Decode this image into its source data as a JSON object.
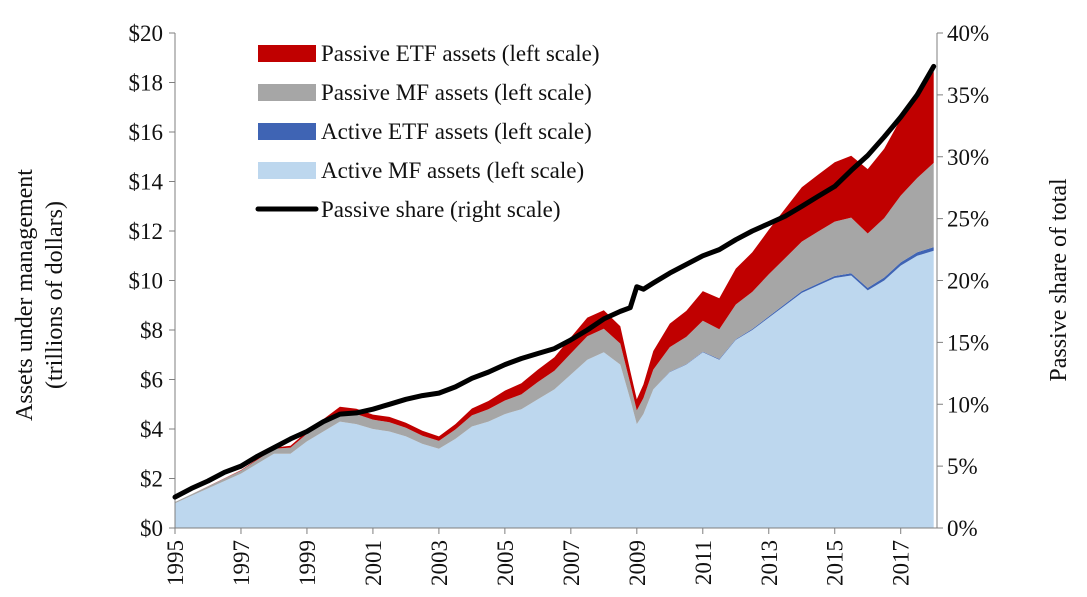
{
  "chart_data": {
    "type": "area",
    "title": "",
    "ylabel_left": [
      "Assets under management",
      "(trillions of dollars)"
    ],
    "ylabel_right": "Passive share of total",
    "x_range": [
      1995,
      2018.1
    ],
    "ylim_left": [
      0,
      20
    ],
    "ylim_right": [
      0,
      40
    ],
    "x_ticks": [
      "1995",
      "1997",
      "1999",
      "2001",
      "2003",
      "2005",
      "2007",
      "2009",
      "2011",
      "2013",
      "2015",
      "2017"
    ],
    "y_ticks_left": [
      "$0",
      "$2",
      "$4",
      "$6",
      "$8",
      "$10",
      "$12",
      "$14",
      "$16",
      "$18",
      "$20"
    ],
    "y_ticks_right": [
      "0%",
      "5%",
      "10%",
      "15%",
      "20%",
      "25%",
      "30%",
      "35%",
      "40%"
    ],
    "legend": [
      {
        "label": "Passive ETF assets (left scale)",
        "color": "#c00000",
        "kind": "area"
      },
      {
        "label": "Passive MF assets (left scale)",
        "color": "#a6a6a6",
        "kind": "area"
      },
      {
        "label": "Active ETF assets (left scale)",
        "color": "#3f64b4",
        "kind": "area"
      },
      {
        "label": "Active MF assets (left scale)",
        "color": "#bdd7ee",
        "kind": "area"
      },
      {
        "label": "Passive share (right scale)",
        "color": "#000000",
        "kind": "line"
      }
    ],
    "x": [
      1995.0,
      1995.5,
      1996.0,
      1996.5,
      1997.0,
      1997.5,
      1998.0,
      1998.5,
      1999.0,
      1999.5,
      2000.0,
      2000.5,
      2001.0,
      2001.5,
      2002.0,
      2002.5,
      2003.0,
      2003.5,
      2004.0,
      2004.5,
      2005.0,
      2005.5,
      2006.0,
      2006.5,
      2007.0,
      2007.5,
      2008.0,
      2008.5,
      2008.8,
      2009.0,
      2009.2,
      2009.5,
      2010.0,
      2010.5,
      2011.0,
      2011.5,
      2012.0,
      2012.5,
      2013.0,
      2013.5,
      2014.0,
      2014.5,
      2015.0,
      2015.5,
      2016.0,
      2016.5,
      2017.0,
      2017.5,
      2018.0
    ],
    "series": [
      {
        "name": "Active MF assets",
        "values": [
          1.0,
          1.3,
          1.6,
          1.9,
          2.2,
          2.6,
          3.0,
          3.0,
          3.5,
          3.9,
          4.3,
          4.2,
          4.0,
          3.9,
          3.7,
          3.4,
          3.2,
          3.6,
          4.1,
          4.3,
          4.6,
          4.8,
          5.2,
          5.6,
          6.2,
          6.8,
          7.1,
          6.6,
          5.2,
          4.2,
          4.6,
          5.6,
          6.3,
          6.6,
          7.1,
          6.8,
          7.6,
          8.0,
          8.5,
          9.0,
          9.5,
          9.8,
          10.1,
          10.2,
          9.6,
          10.0,
          10.6,
          11.0,
          11.2
        ]
      },
      {
        "name": "Active ETF assets",
        "values": [
          0,
          0,
          0,
          0,
          0,
          0,
          0,
          0,
          0,
          0,
          0,
          0,
          0,
          0,
          0,
          0,
          0,
          0,
          0,
          0,
          0,
          0,
          0,
          0,
          0,
          0,
          0,
          0,
          0,
          0,
          0,
          0,
          0.01,
          0.02,
          0.02,
          0.03,
          0.03,
          0.04,
          0.05,
          0.06,
          0.07,
          0.08,
          0.08,
          0.09,
          0.1,
          0.12,
          0.13,
          0.14,
          0.15
        ]
      },
      {
        "name": "Passive MF assets",
        "values": [
          0.05,
          0.06,
          0.08,
          0.1,
          0.12,
          0.16,
          0.2,
          0.25,
          0.3,
          0.35,
          0.4,
          0.4,
          0.38,
          0.37,
          0.35,
          0.33,
          0.32,
          0.38,
          0.45,
          0.5,
          0.55,
          0.6,
          0.7,
          0.75,
          0.85,
          0.95,
          0.95,
          0.85,
          0.65,
          0.55,
          0.65,
          0.8,
          1.0,
          1.1,
          1.25,
          1.2,
          1.4,
          1.5,
          1.7,
          1.85,
          2.0,
          2.1,
          2.2,
          2.25,
          2.2,
          2.4,
          2.7,
          3.0,
          3.4
        ]
      },
      {
        "name": "Passive ETF assets",
        "values": [
          0,
          0,
          0.01,
          0.01,
          0.02,
          0.03,
          0.05,
          0.07,
          0.1,
          0.15,
          0.2,
          0.22,
          0.2,
          0.22,
          0.2,
          0.2,
          0.18,
          0.22,
          0.28,
          0.33,
          0.4,
          0.45,
          0.5,
          0.55,
          0.65,
          0.75,
          0.75,
          0.7,
          0.5,
          0.45,
          0.55,
          0.75,
          0.95,
          1.05,
          1.2,
          1.25,
          1.45,
          1.6,
          1.8,
          2.0,
          2.2,
          2.3,
          2.4,
          2.5,
          2.6,
          2.8,
          3.1,
          3.4,
          3.7
        ]
      },
      {
        "name": "Passive share",
        "axis": "right",
        "values": [
          2.5,
          3.2,
          3.8,
          4.5,
          5.0,
          5.8,
          6.5,
          7.2,
          7.8,
          8.6,
          9.2,
          9.3,
          9.6,
          10.0,
          10.4,
          10.7,
          10.9,
          11.4,
          12.1,
          12.6,
          13.2,
          13.7,
          14.1,
          14.5,
          15.2,
          16.0,
          16.9,
          17.5,
          17.8,
          19.5,
          19.3,
          19.8,
          20.6,
          21.3,
          22.0,
          22.5,
          23.3,
          24.0,
          24.6,
          25.2,
          26.0,
          26.8,
          27.6,
          28.9,
          30.1,
          31.6,
          33.2,
          35.0,
          37.3
        ]
      }
    ]
  }
}
